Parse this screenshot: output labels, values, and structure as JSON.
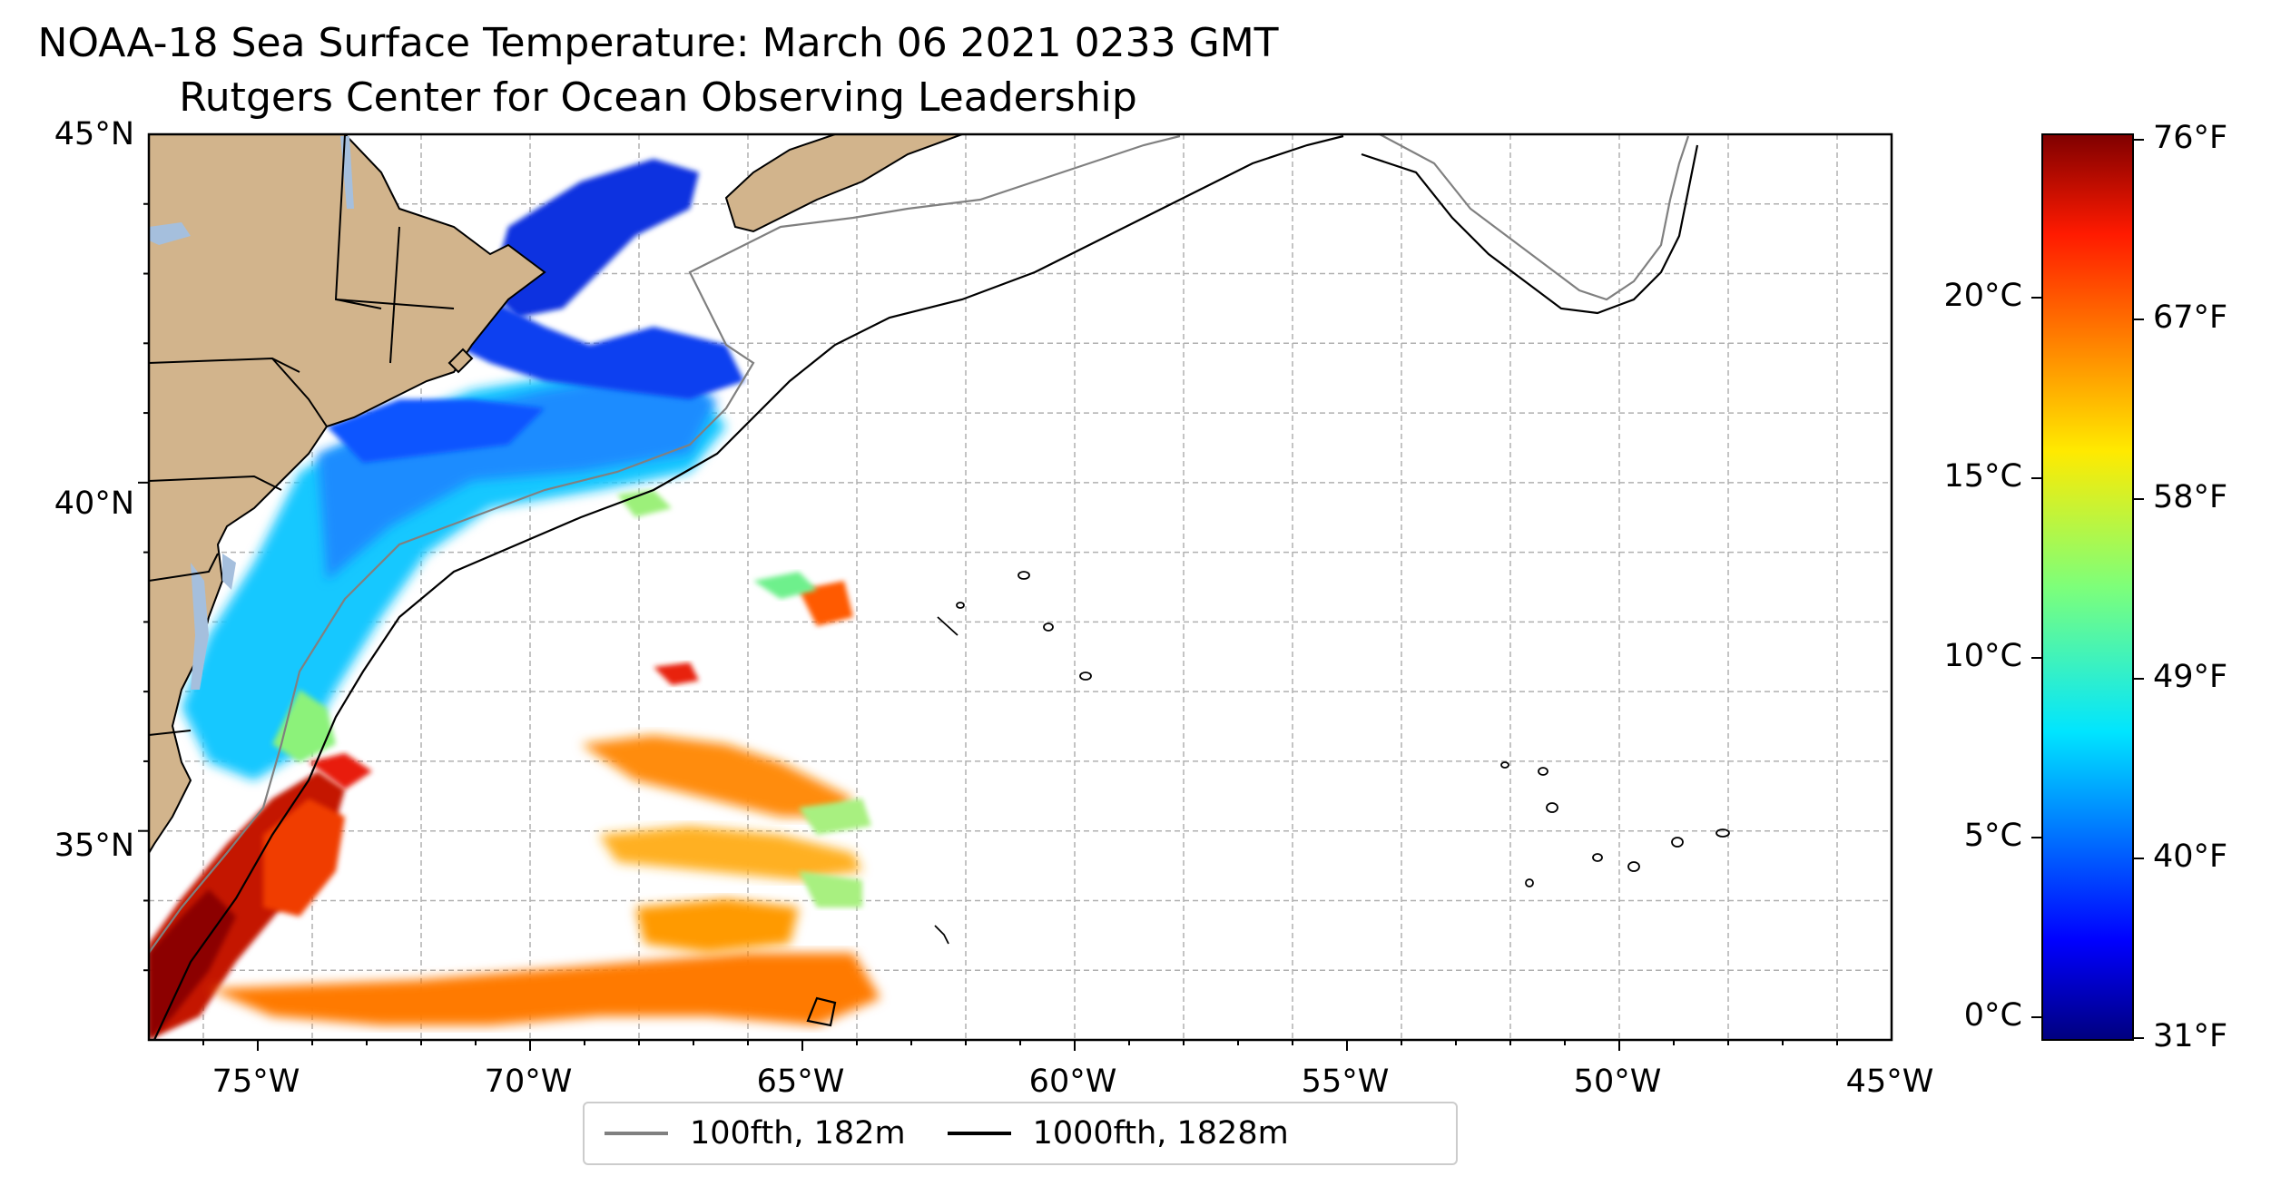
{
  "map": {
    "title": "NOAA-18 Sea Surface Temperature: March 06 2021 0233 GMT",
    "subtitle": "Rutgers Center for Ocean Observing Leadership",
    "extent": {
      "lon_min": -77,
      "lon_max": -45,
      "lat_min": 32,
      "lat_max": 45
    },
    "lat_labels": [
      "45°N",
      "40°N",
      "35°N"
    ],
    "lon_labels": [
      "75°W",
      "70°W",
      "65°W",
      "60°W",
      "55°W",
      "50°W",
      "45°W"
    ],
    "land_color": "#d2b48c",
    "water_body_color": "#a5bfdd",
    "grid": true
  },
  "colorbar": {
    "colormap": "jet",
    "celsius_labels": [
      "20°C",
      "15°C",
      "10°C",
      "5°C",
      "0°C"
    ],
    "fahrenheit_labels": [
      "76°F",
      "67°F",
      "58°F",
      "49°F",
      "40°F",
      "31°F"
    ]
  },
  "legend": {
    "items": [
      {
        "label": "100fth, 182m",
        "color": "#808080"
      },
      {
        "label": "1000fth, 1828m",
        "color": "#000000"
      }
    ]
  }
}
